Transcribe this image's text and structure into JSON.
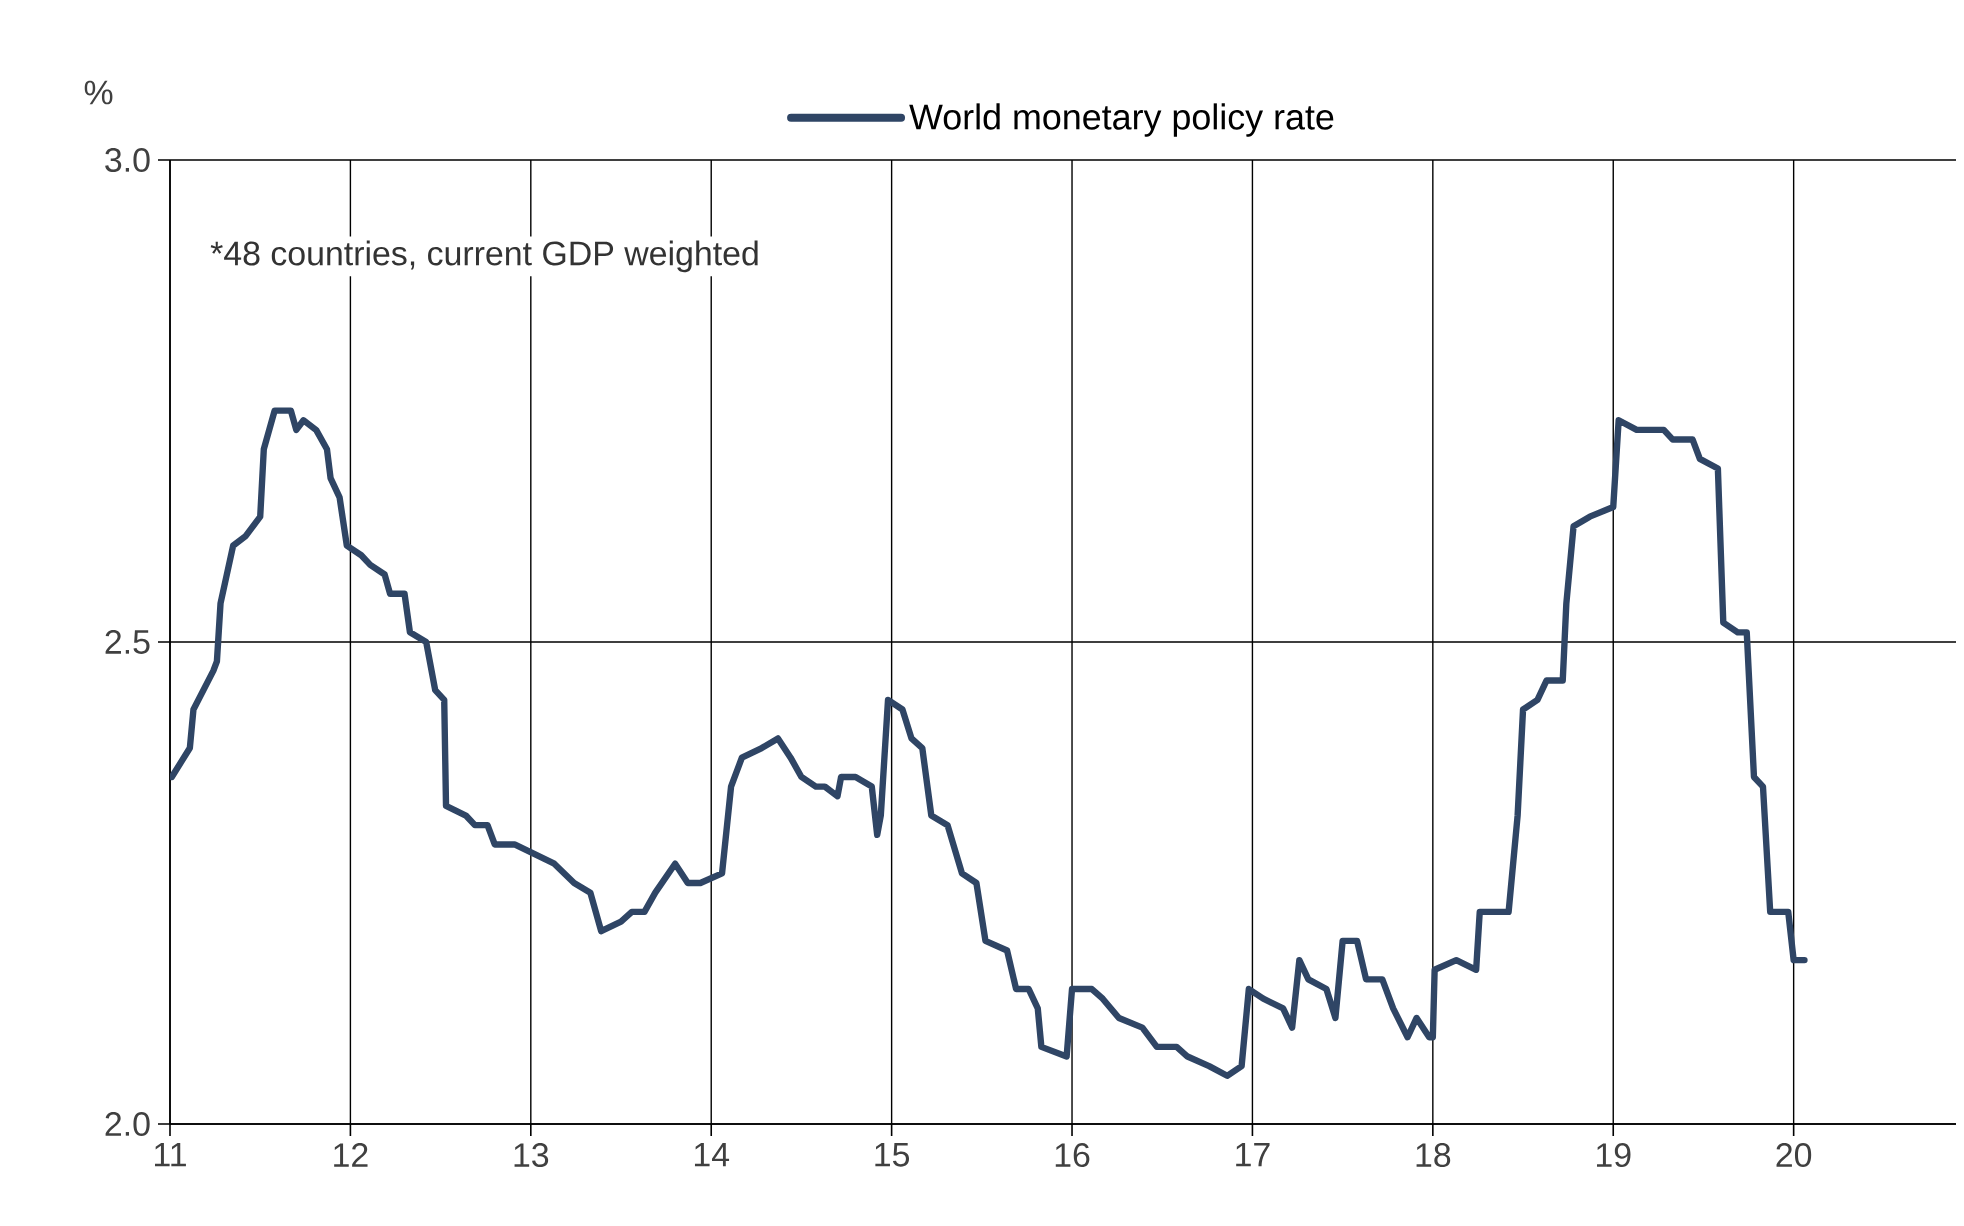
{
  "chart_data": {
    "type": "line",
    "ylabel": "%",
    "annotations": [
      "*48 countries, current GDP weighted"
    ],
    "xlim": [
      11,
      20.9
    ],
    "xticks": [
      11,
      12,
      13,
      14,
      15,
      16,
      17,
      18,
      19,
      20
    ],
    "ylim": [
      2.0,
      3.0
    ],
    "yticks": [
      {
        "value": 2.0,
        "label": "2.0"
      },
      {
        "value": 2.5,
        "label": "2.5"
      },
      {
        "value": 3.0,
        "label": "3.0"
      }
    ],
    "grid": true,
    "legend": "top",
    "series": [
      {
        "name": "World monetary policy rate",
        "color": "#2f4565",
        "x": [
          11.01,
          11.11,
          11.13,
          11.24,
          11.26,
          11.28,
          11.35,
          11.42,
          11.5,
          11.52,
          11.58,
          11.67,
          11.7,
          11.74,
          11.81,
          11.87,
          11.89,
          11.94,
          11.98,
          12.06,
          12.11,
          12.19,
          12.22,
          12.3,
          12.33,
          12.42,
          12.47,
          12.52,
          12.53,
          12.64,
          12.69,
          12.76,
          12.8,
          12.91,
          13.02,
          13.13,
          13.24,
          13.33,
          13.39,
          13.5,
          13.56,
          13.63,
          13.69,
          13.8,
          13.87,
          13.94,
          14.06,
          14.11,
          14.17,
          14.28,
          14.37,
          14.44,
          14.5,
          14.58,
          14.63,
          14.7,
          14.72,
          14.8,
          14.89,
          14.92,
          14.94,
          14.98,
          15.06,
          15.11,
          15.17,
          15.22,
          15.31,
          15.39,
          15.47,
          15.52,
          15.64,
          15.69,
          15.76,
          15.81,
          15.83,
          15.97,
          16.0,
          16.11,
          16.17,
          16.26,
          16.39,
          16.47,
          16.58,
          16.64,
          16.76,
          16.86,
          16.94,
          16.98,
          17.06,
          17.17,
          17.22,
          17.26,
          17.31,
          17.41,
          17.46,
          17.5,
          17.58,
          17.63,
          17.72,
          17.78,
          17.86,
          17.91,
          17.98,
          18.0,
          18.01,
          18.13,
          18.24,
          18.26,
          18.42,
          18.47,
          18.5,
          18.58,
          18.63,
          18.72,
          18.74,
          18.78,
          18.87,
          19.0,
          19.03,
          19.13,
          19.19,
          19.28,
          19.33,
          19.44,
          19.48,
          19.58,
          19.61,
          19.69,
          19.74,
          19.78,
          19.83,
          19.87,
          19.97,
          20.0,
          20.06
        ],
        "values": [
          2.36,
          2.39,
          2.43,
          2.47,
          2.48,
          2.54,
          2.6,
          2.61,
          2.63,
          2.7,
          2.74,
          2.74,
          2.72,
          2.73,
          2.72,
          2.7,
          2.67,
          2.65,
          2.6,
          2.59,
          2.58,
          2.57,
          2.55,
          2.55,
          2.51,
          2.5,
          2.45,
          2.44,
          2.33,
          2.32,
          2.31,
          2.31,
          2.29,
          2.29,
          2.28,
          2.27,
          2.25,
          2.24,
          2.2,
          2.21,
          2.22,
          2.22,
          2.24,
          2.27,
          2.25,
          2.25,
          2.26,
          2.35,
          2.38,
          2.39,
          2.4,
          2.38,
          2.36,
          2.35,
          2.35,
          2.34,
          2.36,
          2.36,
          2.35,
          2.3,
          2.32,
          2.44,
          2.43,
          2.4,
          2.39,
          2.32,
          2.31,
          2.26,
          2.25,
          2.19,
          2.18,
          2.14,
          2.14,
          2.12,
          2.08,
          2.07,
          2.14,
          2.14,
          2.13,
          2.11,
          2.1,
          2.08,
          2.08,
          2.07,
          2.06,
          2.05,
          2.06,
          2.14,
          2.13,
          2.12,
          2.1,
          2.17,
          2.15,
          2.14,
          2.11,
          2.19,
          2.19,
          2.15,
          2.15,
          2.12,
          2.09,
          2.11,
          2.09,
          2.09,
          2.16,
          2.17,
          2.16,
          2.22,
          2.22,
          2.32,
          2.43,
          2.44,
          2.46,
          2.46,
          2.54,
          2.62,
          2.63,
          2.64,
          2.73,
          2.72,
          2.72,
          2.72,
          2.71,
          2.71,
          2.69,
          2.68,
          2.52,
          2.51,
          2.51,
          2.36,
          2.35,
          2.22,
          2.22,
          2.17,
          2.17
        ]
      }
    ]
  }
}
